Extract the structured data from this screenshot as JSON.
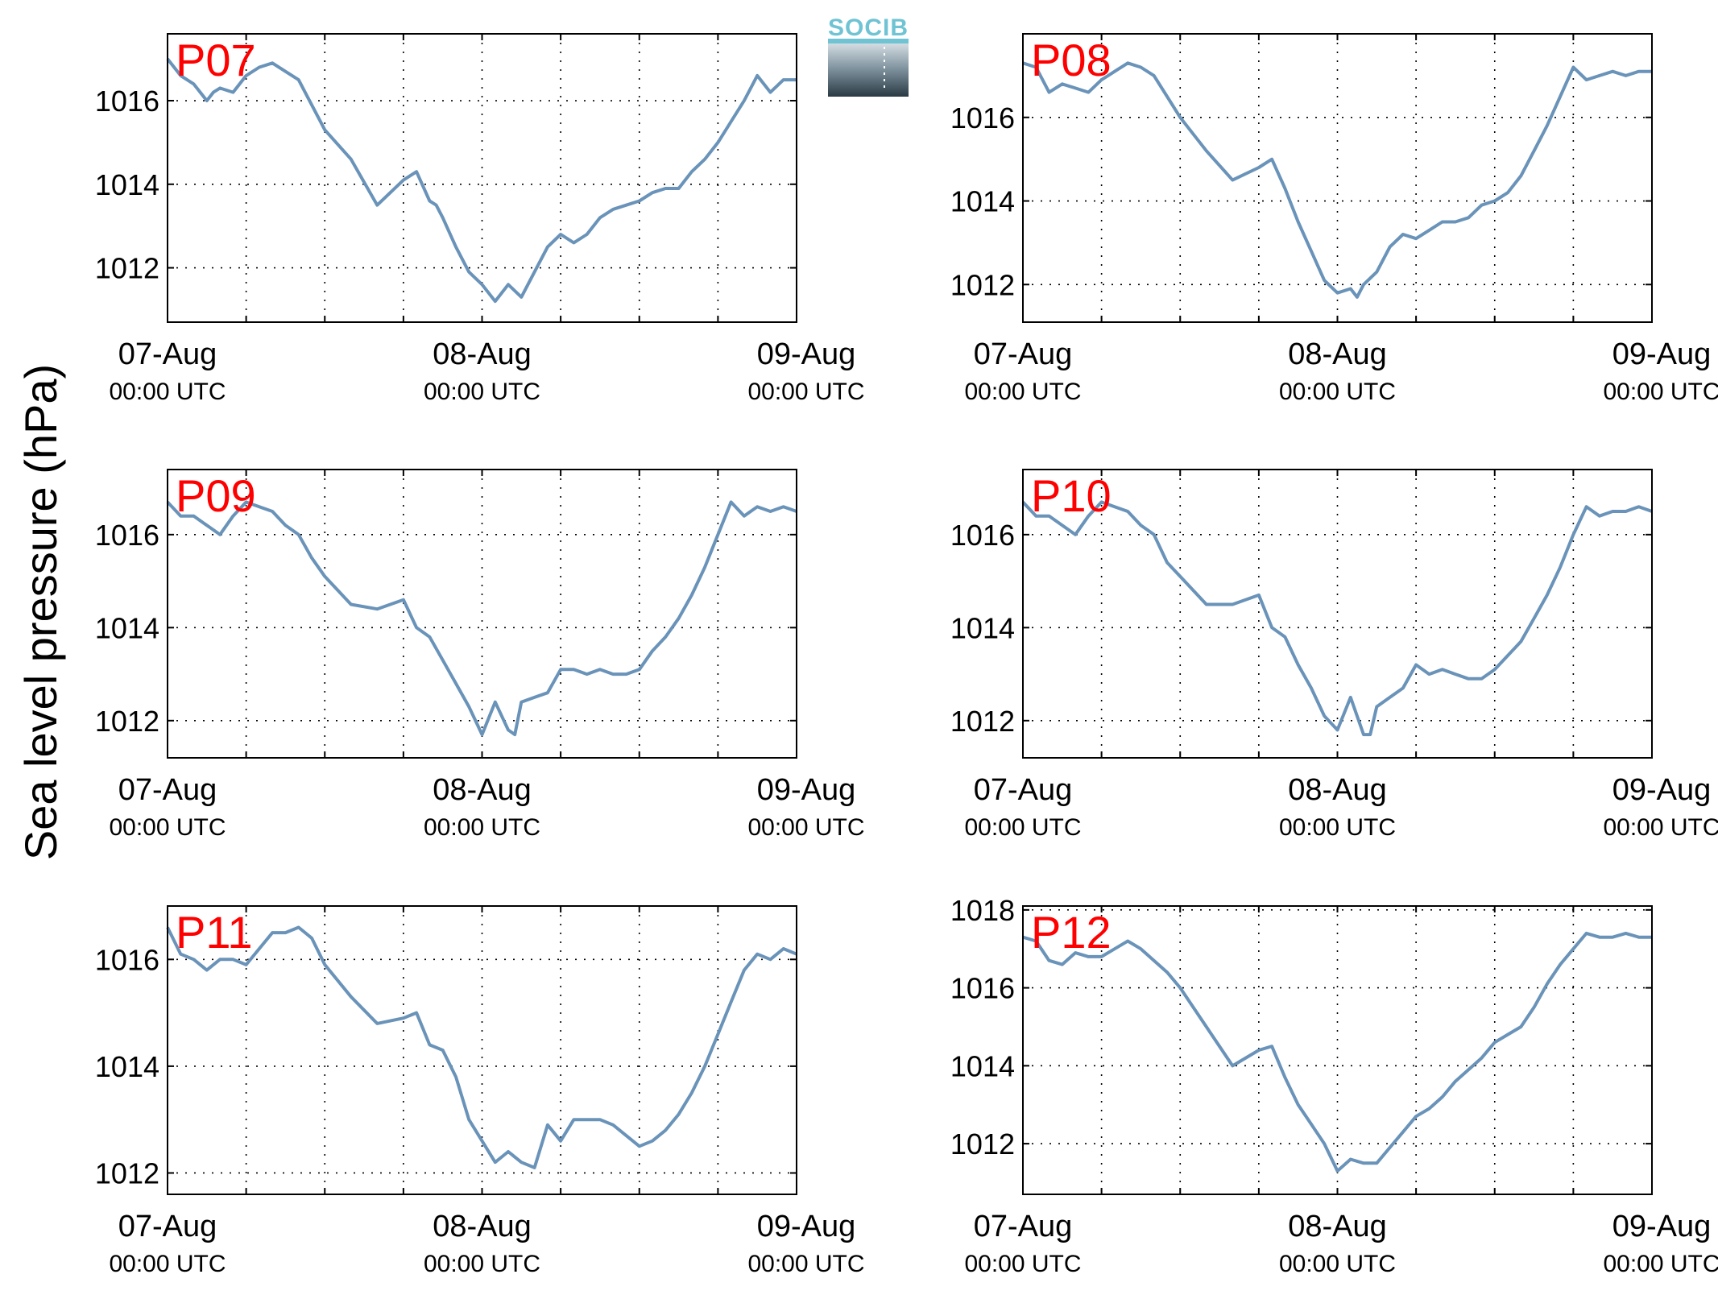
{
  "figure": {
    "ylabel": "Sea level pressure (hPa)",
    "logo_text": "SOCIB",
    "colors": {
      "line": "#6a93b9",
      "panel_label": "#ff0000",
      "logo_top": "#6fc3d3",
      "logo_bottom": "#2a3a44"
    }
  },
  "chart_data": [
    {
      "type": "line",
      "name": "P07",
      "label": "P07",
      "x_ticks": [
        {
          "day": "07-Aug",
          "time": "00:00 UTC"
        },
        {
          "day": "08-Aug",
          "time": "00:00 UTC"
        },
        {
          "day": "09-Aug",
          "time": "00:00 UTC"
        }
      ],
      "xlim": [
        0,
        48
      ],
      "ylim": [
        1010.7,
        1017.6
      ],
      "yticks": [
        1012,
        1014,
        1016
      ],
      "grid": true,
      "x": [
        0,
        1,
        2,
        3,
        3.5,
        4,
        5,
        6,
        7,
        8,
        9,
        10,
        11,
        12,
        14,
        16,
        18,
        19,
        20,
        20.5,
        21,
        22,
        23,
        24,
        25,
        26,
        27,
        28,
        29,
        30,
        31,
        32,
        33,
        34,
        35,
        36,
        37,
        38,
        39,
        40,
        41,
        42,
        43,
        44,
        45,
        46,
        47,
        48
      ],
      "y": [
        1017.0,
        1016.6,
        1016.4,
        1016.0,
        1016.2,
        1016.3,
        1016.2,
        1016.6,
        1016.8,
        1016.9,
        1016.7,
        1016.5,
        1015.9,
        1015.3,
        1014.6,
        1013.5,
        1014.1,
        1014.3,
        1013.6,
        1013.5,
        1013.2,
        1012.5,
        1011.9,
        1011.6,
        1011.2,
        1011.6,
        1011.3,
        1011.9,
        1012.5,
        1012.8,
        1012.6,
        1012.8,
        1013.2,
        1013.4,
        1013.5,
        1013.6,
        1013.8,
        1013.9,
        1013.9,
        1014.3,
        1014.6,
        1015.0,
        1015.5,
        1016.0,
        1016.6,
        1016.2,
        1016.5,
        1016.5
      ]
    },
    {
      "type": "line",
      "name": "P08",
      "label": "P08",
      "x_ticks": [
        {
          "day": "07-Aug",
          "time": "00:00 UTC"
        },
        {
          "day": "08-Aug",
          "time": "00:00 UTC"
        },
        {
          "day": "09-Aug",
          "time": "00:00 UTC"
        }
      ],
      "xlim": [
        0,
        48
      ],
      "ylim": [
        1011.1,
        1018.0
      ],
      "yticks": [
        1012,
        1014,
        1016
      ],
      "grid": true,
      "x": [
        0,
        1,
        2,
        3,
        4,
        5,
        6,
        6.5,
        7,
        8,
        9,
        10,
        11,
        12,
        14,
        16,
        18,
        19,
        20,
        21,
        22,
        23,
        24,
        25,
        25.5,
        26,
        27,
        28,
        29,
        30,
        31,
        32,
        33,
        34,
        35,
        36,
        37,
        38,
        39,
        40,
        41,
        42,
        43,
        44,
        45,
        46,
        47,
        48
      ],
      "y": [
        1017.3,
        1017.2,
        1016.6,
        1016.8,
        1016.7,
        1016.6,
        1016.9,
        1017.0,
        1017.1,
        1017.3,
        1017.2,
        1017.0,
        1016.5,
        1016.0,
        1015.2,
        1014.5,
        1014.8,
        1015.0,
        1014.3,
        1013.5,
        1012.8,
        1012.1,
        1011.8,
        1011.9,
        1011.7,
        1012.0,
        1012.3,
        1012.9,
        1013.2,
        1013.1,
        1013.3,
        1013.5,
        1013.5,
        1013.6,
        1013.9,
        1014.0,
        1014.2,
        1014.6,
        1015.2,
        1015.8,
        1016.5,
        1017.2,
        1016.9,
        1017.0,
        1017.1,
        1017.0,
        1017.1,
        1017.1
      ]
    },
    {
      "type": "line",
      "name": "P09",
      "label": "P09",
      "x_ticks": [
        {
          "day": "07-Aug",
          "time": "00:00 UTC"
        },
        {
          "day": "08-Aug",
          "time": "00:00 UTC"
        },
        {
          "day": "09-Aug",
          "time": "00:00 UTC"
        }
      ],
      "xlim": [
        0,
        48
      ],
      "ylim": [
        1011.2,
        1017.4
      ],
      "yticks": [
        1012,
        1014,
        1016
      ],
      "grid": true,
      "x": [
        0,
        1,
        2,
        3,
        4,
        5,
        6,
        7,
        8,
        9,
        10,
        11,
        12,
        14,
        16,
        18,
        19,
        20,
        21,
        22,
        23,
        24,
        25,
        26,
        26.5,
        27,
        28,
        29,
        30,
        31,
        32,
        33,
        34,
        35,
        36,
        37,
        38,
        39,
        40,
        41,
        42,
        43,
        44,
        45,
        46,
        47,
        48
      ],
      "y": [
        1016.7,
        1016.4,
        1016.4,
        1016.2,
        1016.0,
        1016.4,
        1016.7,
        1016.6,
        1016.5,
        1016.2,
        1016.0,
        1015.5,
        1015.1,
        1014.5,
        1014.4,
        1014.6,
        1014.0,
        1013.8,
        1013.3,
        1012.8,
        1012.3,
        1011.7,
        1012.4,
        1011.8,
        1011.7,
        1012.4,
        1012.5,
        1012.6,
        1013.1,
        1013.1,
        1013.0,
        1013.1,
        1013.0,
        1013.0,
        1013.1,
        1013.5,
        1013.8,
        1014.2,
        1014.7,
        1015.3,
        1016.0,
        1016.7,
        1016.4,
        1016.6,
        1016.5,
        1016.6,
        1016.5
      ]
    },
    {
      "type": "line",
      "name": "P10",
      "label": "P10",
      "x_ticks": [
        {
          "day": "07-Aug",
          "time": "00:00 UTC"
        },
        {
          "day": "08-Aug",
          "time": "00:00 UTC"
        },
        {
          "day": "09-Aug",
          "time": "00:00 UTC"
        }
      ],
      "xlim": [
        0,
        48
      ],
      "ylim": [
        1011.2,
        1017.4
      ],
      "yticks": [
        1012,
        1014,
        1016
      ],
      "grid": true,
      "x": [
        0,
        1,
        2,
        3,
        4,
        5,
        6,
        7,
        8,
        9,
        10,
        11,
        12,
        14,
        16,
        18,
        19,
        20,
        21,
        22,
        23,
        24,
        25,
        26,
        26.5,
        27,
        28,
        29,
        30,
        31,
        32,
        33,
        34,
        35,
        36,
        37,
        38,
        39,
        40,
        41,
        42,
        43,
        44,
        45,
        46,
        47,
        48
      ],
      "y": [
        1016.7,
        1016.4,
        1016.4,
        1016.2,
        1016.0,
        1016.4,
        1016.7,
        1016.6,
        1016.5,
        1016.2,
        1016.0,
        1015.4,
        1015.1,
        1014.5,
        1014.5,
        1014.7,
        1014.0,
        1013.8,
        1013.2,
        1012.7,
        1012.1,
        1011.8,
        1012.5,
        1011.7,
        1011.7,
        1012.3,
        1012.5,
        1012.7,
        1013.2,
        1013.0,
        1013.1,
        1013.0,
        1012.9,
        1012.9,
        1013.1,
        1013.4,
        1013.7,
        1014.2,
        1014.7,
        1015.3,
        1016.0,
        1016.6,
        1016.4,
        1016.5,
        1016.5,
        1016.6,
        1016.5
      ]
    },
    {
      "type": "line",
      "name": "P11",
      "label": "P11",
      "x_ticks": [
        {
          "day": "07-Aug",
          "time": "00:00 UTC"
        },
        {
          "day": "08-Aug",
          "time": "00:00 UTC"
        },
        {
          "day": "09-Aug",
          "time": "00:00 UTC"
        }
      ],
      "xlim": [
        0,
        48
      ],
      "ylim": [
        1011.6,
        1017.0
      ],
      "yticks": [
        1012,
        1014,
        1016
      ],
      "grid": true,
      "x": [
        0,
        1,
        2,
        3,
        4,
        5,
        6,
        7,
        8,
        9,
        10,
        11,
        12,
        14,
        16,
        18,
        19,
        20,
        21,
        22,
        23,
        24,
        25,
        26,
        27,
        28,
        29,
        30,
        31,
        32,
        33,
        34,
        35,
        36,
        37,
        38,
        39,
        40,
        41,
        42,
        43,
        44,
        45,
        46,
        47,
        48
      ],
      "y": [
        1016.6,
        1016.1,
        1016.0,
        1015.8,
        1016.0,
        1016.0,
        1015.9,
        1016.2,
        1016.5,
        1016.5,
        1016.6,
        1016.4,
        1015.9,
        1015.3,
        1014.8,
        1014.9,
        1015.0,
        1014.4,
        1014.3,
        1013.8,
        1013.0,
        1012.6,
        1012.2,
        1012.4,
        1012.2,
        1012.1,
        1012.9,
        1012.6,
        1013.0,
        1013.0,
        1013.0,
        1012.9,
        1012.7,
        1012.5,
        1012.6,
        1012.8,
        1013.1,
        1013.5,
        1014.0,
        1014.6,
        1015.2,
        1015.8,
        1016.1,
        1016.0,
        1016.2,
        1016.1
      ]
    },
    {
      "type": "line",
      "name": "P12",
      "label": "P12",
      "x_ticks": [
        {
          "day": "07-Aug",
          "time": "00:00 UTC"
        },
        {
          "day": "08-Aug",
          "time": "00:00 UTC"
        },
        {
          "day": "09-Aug",
          "time": "00:00 UTC"
        }
      ],
      "xlim": [
        0,
        48
      ],
      "ylim": [
        1010.7,
        1018.1
      ],
      "yticks": [
        1012,
        1014,
        1016,
        1018
      ],
      "grid": true,
      "x": [
        0,
        1,
        2,
        3,
        4,
        5,
        6,
        7,
        8,
        9,
        10,
        11,
        12,
        14,
        16,
        18,
        19,
        20,
        21,
        22,
        23,
        24,
        25,
        26,
        27,
        28,
        29,
        30,
        31,
        32,
        33,
        34,
        35,
        36,
        37,
        38,
        39,
        40,
        41,
        42,
        43,
        44,
        45,
        46,
        47,
        48
      ],
      "y": [
        1017.3,
        1017.2,
        1016.7,
        1016.6,
        1016.9,
        1016.8,
        1016.8,
        1017.0,
        1017.2,
        1017.0,
        1016.7,
        1016.4,
        1016.0,
        1015.0,
        1014.0,
        1014.4,
        1014.5,
        1013.7,
        1013.0,
        1012.5,
        1012.0,
        1011.3,
        1011.6,
        1011.5,
        1011.5,
        1011.9,
        1012.3,
        1012.7,
        1012.9,
        1013.2,
        1013.6,
        1013.9,
        1014.2,
        1014.6,
        1014.8,
        1015.0,
        1015.5,
        1016.1,
        1016.6,
        1017.0,
        1017.4,
        1017.3,
        1017.3,
        1017.4,
        1017.3,
        1017.3
      ]
    }
  ]
}
